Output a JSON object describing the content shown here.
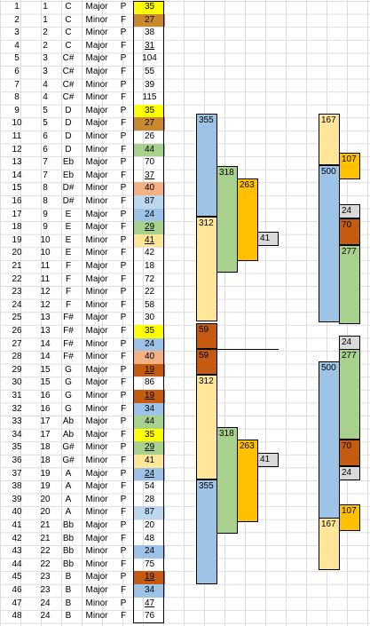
{
  "rows": [
    {
      "n": "1",
      "k": "1",
      "note": "C",
      "q": "Major",
      "t": "P",
      "v": "35",
      "c": "#ffff00",
      "u": false
    },
    {
      "n": "2",
      "k": "1",
      "note": "C",
      "q": "Minor",
      "t": "F",
      "v": "27",
      "c": "#c88a2c",
      "u": false
    },
    {
      "n": "3",
      "k": "2",
      "note": "C",
      "q": "Minor",
      "t": "P",
      "v": "38",
      "c": "",
      "u": false
    },
    {
      "n": "4",
      "k": "2",
      "note": "C",
      "q": "Major",
      "t": "F",
      "v": "31",
      "c": "",
      "u": true
    },
    {
      "n": "5",
      "k": "3",
      "note": "C#",
      "q": "Major",
      "t": "P",
      "v": "104",
      "c": "",
      "u": false
    },
    {
      "n": "6",
      "k": "3",
      "note": "C#",
      "q": "Major",
      "t": "F",
      "v": "55",
      "c": "",
      "u": false
    },
    {
      "n": "7",
      "k": "4",
      "note": "C#",
      "q": "Minor",
      "t": "P",
      "v": "39",
      "c": "",
      "u": false
    },
    {
      "n": "8",
      "k": "4",
      "note": "C#",
      "q": "Minor",
      "t": "F",
      "v": "115",
      "c": "",
      "u": false
    },
    {
      "n": "9",
      "k": "5",
      "note": "D",
      "q": "Major",
      "t": "P",
      "v": "35",
      "c": "#ffff00",
      "u": false
    },
    {
      "n": "10",
      "k": "5",
      "note": "D",
      "q": "Major",
      "t": "F",
      "v": "27",
      "c": "#c88a2c",
      "u": false
    },
    {
      "n": "11",
      "k": "6",
      "note": "D",
      "q": "Minor",
      "t": "P",
      "v": "26",
      "c": "",
      "u": false
    },
    {
      "n": "12",
      "k": "6",
      "note": "D",
      "q": "Minor",
      "t": "F",
      "v": "44",
      "c": "#a9d18e",
      "u": false
    },
    {
      "n": "13",
      "k": "7",
      "note": "Eb",
      "q": "Major",
      "t": "P",
      "v": "70",
      "c": "",
      "u": false
    },
    {
      "n": "14",
      "k": "7",
      "note": "Eb",
      "q": "Major",
      "t": "F",
      "v": "37",
      "c": "",
      "u": true
    },
    {
      "n": "15",
      "k": "8",
      "note": "D#",
      "q": "Minor",
      "t": "P",
      "v": "40",
      "c": "#f4b183",
      "u": false
    },
    {
      "n": "16",
      "k": "8",
      "note": "D#",
      "q": "Minor",
      "t": "F",
      "v": "87",
      "c": "#bdd7ee",
      "u": false
    },
    {
      "n": "17",
      "k": "9",
      "note": "E",
      "q": "Major",
      "t": "P",
      "v": "24",
      "c": "#9dc3e6",
      "u": false
    },
    {
      "n": "18",
      "k": "9",
      "note": "E",
      "q": "Major",
      "t": "F",
      "v": "29",
      "c": "#a9d18e",
      "u": true
    },
    {
      "n": "19",
      "k": "10",
      "note": "E",
      "q": "Minor",
      "t": "P",
      "v": "41",
      "c": "#ffe699",
      "u": true
    },
    {
      "n": "20",
      "k": "10",
      "note": "E",
      "q": "Minor",
      "t": "F",
      "v": "42",
      "c": "",
      "u": false
    },
    {
      "n": "21",
      "k": "11",
      "note": "F",
      "q": "Major",
      "t": "P",
      "v": "18",
      "c": "",
      "u": false
    },
    {
      "n": "22",
      "k": "11",
      "note": "F",
      "q": "Major",
      "t": "F",
      "v": "72",
      "c": "",
      "u": false
    },
    {
      "n": "23",
      "k": "12",
      "note": "F",
      "q": "Minor",
      "t": "P",
      "v": "22",
      "c": "",
      "u": false
    },
    {
      "n": "24",
      "k": "12",
      "note": "F",
      "q": "Minor",
      "t": "F",
      "v": "58",
      "c": "",
      "u": false
    },
    {
      "n": "25",
      "k": "13",
      "note": "F#",
      "q": "Major",
      "t": "P",
      "v": "30",
      "c": "",
      "u": false
    },
    {
      "n": "26",
      "k": "13",
      "note": "F#",
      "q": "Major",
      "t": "F",
      "v": "35",
      "c": "#ffff00",
      "u": false
    },
    {
      "n": "27",
      "k": "14",
      "note": "F#",
      "q": "Minor",
      "t": "P",
      "v": "24",
      "c": "#9dc3e6",
      "u": false
    },
    {
      "n": "28",
      "k": "14",
      "note": "F#",
      "q": "Minor",
      "t": "F",
      "v": "40",
      "c": "#f4b183",
      "u": false
    },
    {
      "n": "29",
      "k": "15",
      "note": "G",
      "q": "Major",
      "t": "P",
      "v": "19",
      "c": "#c55a11",
      "u": true
    },
    {
      "n": "30",
      "k": "15",
      "note": "G",
      "q": "Major",
      "t": "F",
      "v": "86",
      "c": "",
      "u": false
    },
    {
      "n": "31",
      "k": "16",
      "note": "G",
      "q": "Minor",
      "t": "P",
      "v": "19",
      "c": "#c55a11",
      "u": true
    },
    {
      "n": "32",
      "k": "16",
      "note": "G",
      "q": "Minor",
      "t": "F",
      "v": "34",
      "c": "#9dc3e6",
      "u": false
    },
    {
      "n": "33",
      "k": "17",
      "note": "Ab",
      "q": "Major",
      "t": "P",
      "v": "44",
      "c": "#a9d18e",
      "u": false
    },
    {
      "n": "34",
      "k": "17",
      "note": "Ab",
      "q": "Major",
      "t": "F",
      "v": "35",
      "c": "#ffff00",
      "u": false
    },
    {
      "n": "35",
      "k": "18",
      "note": "G#",
      "q": "Minor",
      "t": "P",
      "v": "29",
      "c": "#a9d18e",
      "u": true
    },
    {
      "n": "36",
      "k": "18",
      "note": "G#",
      "q": "Minor",
      "t": "F",
      "v": "41",
      "c": "#ffe699",
      "u": false
    },
    {
      "n": "37",
      "k": "19",
      "note": "A",
      "q": "Major",
      "t": "P",
      "v": "24",
      "c": "#9dc3e6",
      "u": true
    },
    {
      "n": "38",
      "k": "19",
      "note": "A",
      "q": "Major",
      "t": "F",
      "v": "54",
      "c": "",
      "u": false
    },
    {
      "n": "39",
      "k": "20",
      "note": "A",
      "q": "Minor",
      "t": "P",
      "v": "28",
      "c": "",
      "u": false
    },
    {
      "n": "40",
      "k": "20",
      "note": "A",
      "q": "Minor",
      "t": "F",
      "v": "87",
      "c": "#bdd7ee",
      "u": false
    },
    {
      "n": "41",
      "k": "21",
      "note": "Bb",
      "q": "Major",
      "t": "P",
      "v": "20",
      "c": "",
      "u": false
    },
    {
      "n": "42",
      "k": "21",
      "note": "Bb",
      "q": "Major",
      "t": "F",
      "v": "48",
      "c": "",
      "u": false
    },
    {
      "n": "43",
      "k": "22",
      "note": "Bb",
      "q": "Minor",
      "t": "P",
      "v": "24",
      "c": "#9dc3e6",
      "u": false
    },
    {
      "n": "44",
      "k": "22",
      "note": "Bb",
      "q": "Minor",
      "t": "F",
      "v": "75",
      "c": "",
      "u": false
    },
    {
      "n": "45",
      "k": "23",
      "note": "B",
      "q": "Major",
      "t": "P",
      "v": "19",
      "c": "#c55a11",
      "u": true
    },
    {
      "n": "46",
      "k": "23",
      "note": "B",
      "q": "Major",
      "t": "F",
      "v": "34",
      "c": "#9dc3e6",
      "u": false
    },
    {
      "n": "47",
      "k": "24",
      "note": "B",
      "q": "Minor",
      "t": "P",
      "v": "47",
      "c": "",
      "u": true
    },
    {
      "n": "48",
      "k": "24",
      "note": "B",
      "q": "Minor",
      "t": "F",
      "v": "76",
      "c": "",
      "u": false
    }
  ],
  "blocks": [
    {
      "label": "355",
      "color": "#9dc3e6"
    },
    {
      "label": "312",
      "color": "#ffe699"
    },
    {
      "label": "318",
      "color": "#a9d18e"
    },
    {
      "label": "263",
      "color": "#ffc000"
    },
    {
      "label": "41",
      "color": "#d9d9d9"
    },
    {
      "label": "59",
      "color": "#c55a11"
    },
    {
      "label": "59",
      "color": "#c55a11"
    },
    {
      "label": "312",
      "color": "#ffe699"
    },
    {
      "label": "318",
      "color": "#a9d18e"
    },
    {
      "label": "263",
      "color": "#ffc000"
    },
    {
      "label": "41",
      "color": "#d9d9d9"
    },
    {
      "label": "355",
      "color": "#9dc3e6"
    },
    {
      "label": "167",
      "color": "#ffe699"
    },
    {
      "label": "107",
      "color": "#ffc000"
    },
    {
      "label": "500",
      "color": "#9dc3e6"
    },
    {
      "label": "24",
      "color": "#d9d9d9"
    },
    {
      "label": "70",
      "color": "#c55a11"
    },
    {
      "label": "277",
      "color": "#a9d18e"
    },
    {
      "label": "24",
      "color": "#d9d9d9"
    },
    {
      "label": "500",
      "color": "#9dc3e6"
    },
    {
      "label": "277",
      "color": "#a9d18e"
    },
    {
      "label": "70",
      "color": "#c55a11"
    },
    {
      "label": "24",
      "color": "#d9d9d9"
    },
    {
      "label": "107",
      "color": "#ffc000"
    },
    {
      "label": "167",
      "color": "#ffe699"
    }
  ]
}
